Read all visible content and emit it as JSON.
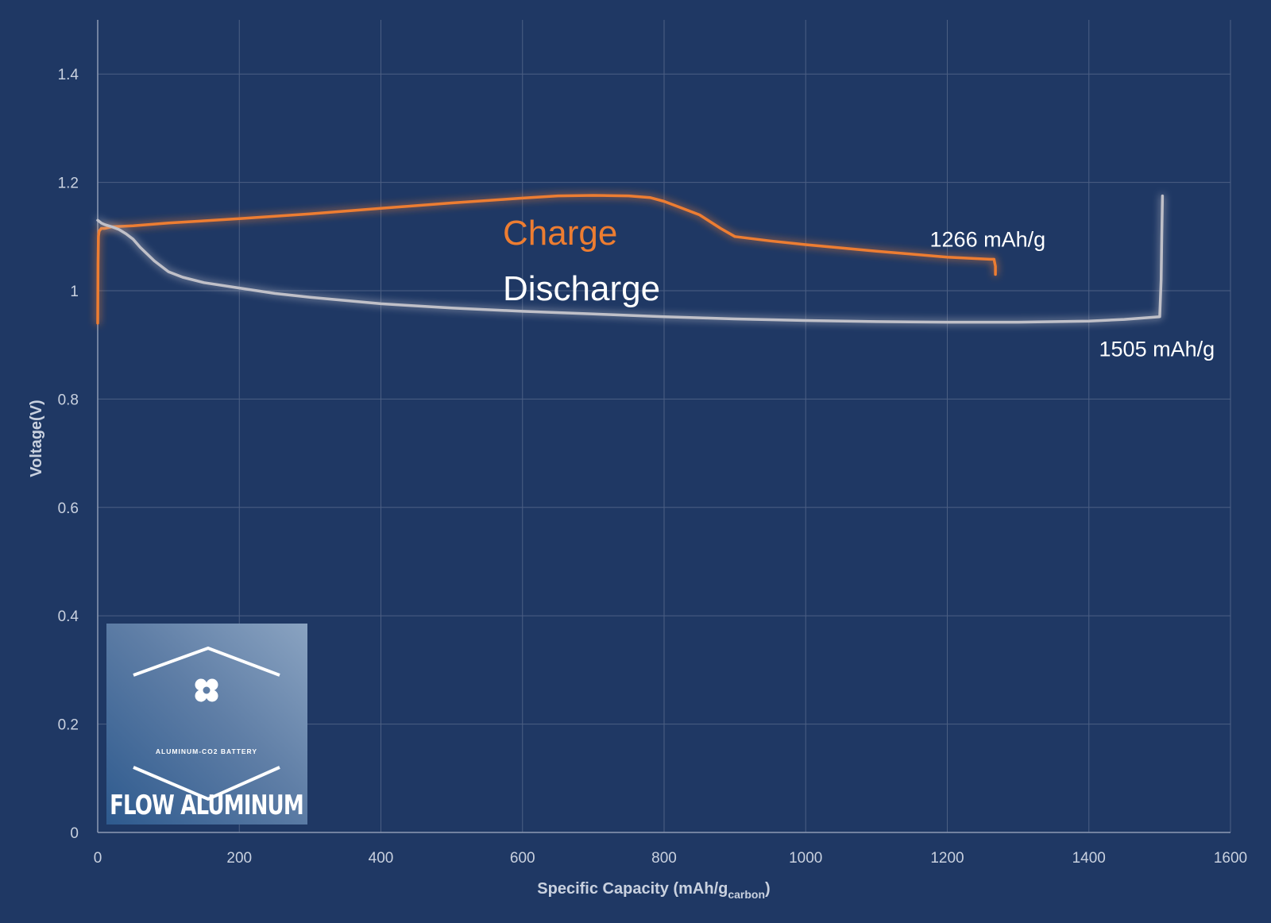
{
  "chart_data": {
    "type": "line",
    "xlabel": "Specific Capacity (mAh/g",
    "xlabel_sub": "carbon",
    "xlabel_suffix": ")",
    "ylabel": "Voltage(V)",
    "xlim": [
      0,
      1600
    ],
    "ylim": [
      0,
      1.5
    ],
    "xticks": [
      0,
      200,
      400,
      600,
      800,
      1000,
      1200,
      1400,
      1600
    ],
    "xtick_labels": [
      "0",
      "200",
      "400",
      "600",
      "800",
      "1000",
      "1200",
      "1400",
      "1600"
    ],
    "yticks": [
      0,
      0.2,
      0.4,
      0.6,
      0.8,
      1.0,
      1.2,
      1.4
    ],
    "ytick_labels": [
      "0",
      "0.2",
      "0.4",
      "0.6",
      "0.8",
      "1",
      "1.2",
      "1.4"
    ],
    "grid": true,
    "series": [
      {
        "name": "Charge",
        "color": "#ed7d31",
        "x": [
          0,
          0.5,
          1,
          2,
          5,
          10,
          20,
          50,
          100,
          200,
          300,
          400,
          500,
          600,
          650,
          700,
          750,
          780,
          800,
          820,
          850,
          880,
          900,
          950,
          1000,
          1100,
          1200,
          1260,
          1266,
          1268,
          1268
        ],
        "y": [
          0.94,
          1.05,
          1.1,
          1.11,
          1.115,
          1.115,
          1.118,
          1.12,
          1.125,
          1.133,
          1.142,
          1.152,
          1.162,
          1.171,
          1.175,
          1.176,
          1.175,
          1.172,
          1.165,
          1.155,
          1.14,
          1.115,
          1.1,
          1.092,
          1.085,
          1.073,
          1.062,
          1.058,
          1.058,
          1.045,
          1.03
        ]
      },
      {
        "name": "Discharge",
        "color": "#c0c0c8",
        "x": [
          0,
          5,
          10,
          20,
          30,
          40,
          50,
          60,
          80,
          100,
          120,
          150,
          200,
          250,
          300,
          400,
          500,
          600,
          700,
          800,
          900,
          1000,
          1100,
          1200,
          1300,
          1400,
          1450,
          1500,
          1502,
          1503,
          1504
        ],
        "y": [
          1.13,
          1.125,
          1.122,
          1.118,
          1.113,
          1.105,
          1.095,
          1.08,
          1.055,
          1.035,
          1.025,
          1.015,
          1.005,
          0.995,
          0.988,
          0.976,
          0.968,
          0.962,
          0.957,
          0.952,
          0.948,
          0.945,
          0.943,
          0.942,
          0.942,
          0.944,
          0.947,
          0.952,
          1.02,
          1.1,
          1.175
        ]
      }
    ],
    "annotations": [
      {
        "text": "1266 mAh/g",
        "x": 1266,
        "y": 1.058
      },
      {
        "text": "1505 mAh/g",
        "x": 1505,
        "y": 0.952
      }
    ],
    "legend": "center"
  },
  "logo": {
    "brand": "FLOW ALUMINUM",
    "tagline": "ALUMINUM-CO2 BATTERY",
    "placement": "bottom-left"
  }
}
